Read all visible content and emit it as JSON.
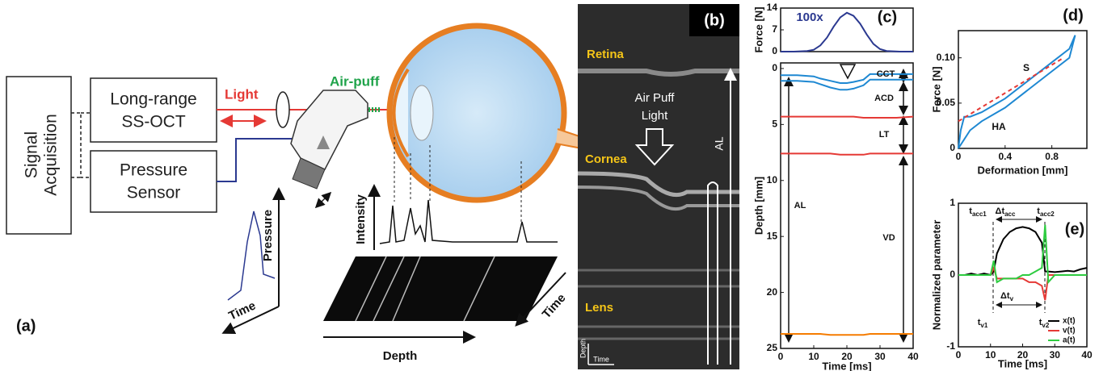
{
  "diagram": {
    "label": "(a)",
    "signal_acquisition": [
      "Signal",
      "Acquisition"
    ],
    "oct": [
      "Long-range",
      "SS-OCT"
    ],
    "sensor": [
      "Pressure",
      "Sensor"
    ],
    "light": "Light",
    "air_puff": "Air-puff",
    "pressure": "Pressure",
    "time_left": "Time",
    "intensity": "Intensity",
    "depth": "Depth",
    "time_right": "Time"
  },
  "image_panel": {
    "label": "(b)",
    "retina": "Retina",
    "cornea": "Cornea",
    "lens": "Lens",
    "air_puff_light": [
      "Air Puff",
      "Light"
    ],
    "al": "AL",
    "depth": "Depth",
    "time": "Time"
  },
  "chart_data": [
    {
      "type": "line",
      "label": "(c)",
      "ylabel": "Force [N]",
      "annotations": [
        "100x"
      ],
      "x": [
        0,
        4,
        8,
        10,
        12,
        14,
        16,
        18,
        20,
        22,
        24,
        26,
        28,
        30,
        32,
        36,
        40
      ],
      "xlim": [
        0,
        40
      ],
      "ylim": [
        0,
        14
      ],
      "yticks": [
        0,
        7,
        14
      ],
      "series": [
        {
          "color": "#2b3990",
          "values": [
            0,
            0,
            0.2,
            0.6,
            2,
            4.5,
            8,
            11,
            12.5,
            11.5,
            9,
            5.5,
            2.5,
            0.8,
            0.2,
            0,
            0
          ]
        }
      ]
    },
    {
      "type": "line",
      "xlabel": "Time [ms]",
      "ylabel": "Depth [mm]",
      "annotations": [
        "CCT",
        "ACD",
        "LT",
        "VD",
        "AL"
      ],
      "x": [
        0,
        5,
        10,
        12,
        15,
        18,
        20,
        22,
        25,
        27,
        30,
        35,
        40
      ],
      "xlim": [
        0,
        40
      ],
      "ylim": [
        25,
        -0.5
      ],
      "xticks": [
        0,
        10,
        20,
        30,
        40
      ],
      "yticks": [
        0,
        5,
        10,
        15,
        20,
        25
      ],
      "series": [
        {
          "color": "#1e88d2",
          "values": [
            0.6,
            0.6,
            0.7,
            0.9,
            1.1,
            1.3,
            1.3,
            1.2,
            1.0,
            0.5,
            0.5,
            0.5,
            0.5
          ]
        },
        {
          "color": "#1e88d2",
          "values": [
            1.1,
            1.1,
            1.2,
            1.4,
            1.7,
            1.9,
            1.9,
            1.8,
            1.5,
            1.0,
            1.0,
            1.0,
            1.0
          ]
        },
        {
          "color": "#e53935",
          "values": [
            4.3,
            4.3,
            4.3,
            4.3,
            4.3,
            4.3,
            4.3,
            4.3,
            4.4,
            4.4,
            4.4,
            4.4,
            4.3
          ]
        },
        {
          "color": "#e53935",
          "values": [
            7.6,
            7.6,
            7.6,
            7.6,
            7.6,
            7.7,
            7.7,
            7.7,
            7.7,
            7.6,
            7.6,
            7.6,
            7.6
          ]
        },
        {
          "color": "#f57c00",
          "values": [
            23.7,
            23.7,
            23.7,
            23.7,
            23.8,
            23.8,
            23.8,
            23.8,
            23.8,
            23.7,
            23.7,
            23.7,
            23.7
          ]
        }
      ]
    },
    {
      "type": "line",
      "label": "(d)",
      "xlabel": "Deformation [mm]",
      "ylabel": "Force [N]",
      "annotations": [
        "HA",
        "S"
      ],
      "xlim": [
        0,
        1.1
      ],
      "ylim": [
        0,
        0.13
      ],
      "xticks": [
        0,
        0.4,
        0.8
      ],
      "yticks": [
        0,
        0.05,
        {
          "value": 0.1,
          "label": "0.10"
        }
      ],
      "series": [
        {
          "color": "#1e88d2",
          "x": [
            0,
            0.02,
            0.05,
            0.1,
            0.2,
            0.4,
            0.6,
            0.8,
            0.95,
            1.0,
            0.95,
            0.8,
            0.6,
            0.4,
            0.2,
            0.1,
            0.05,
            0
          ],
          "values": [
            0,
            0.02,
            0.035,
            0.035,
            0.04,
            0.055,
            0.075,
            0.095,
            0.11,
            0.125,
            0.1,
            0.085,
            0.065,
            0.045,
            0.03,
            0.02,
            0.01,
            0
          ]
        },
        {
          "color": "#e53935",
          "line_style": "dashed",
          "x": [
            0,
            0.9
          ],
          "values": [
            0.03,
            0.1
          ]
        }
      ]
    },
    {
      "type": "line",
      "label": "(e)",
      "xlabel": "Time [ms]",
      "ylabel": "Normalized parameter",
      "annotations": [
        {
          "text": "t",
          "sub": "acc1"
        },
        {
          "text": "t",
          "sub": "acc2"
        },
        {
          "text": "Δt",
          "sub": "acc"
        },
        {
          "text": "Δt",
          "sub": "v"
        },
        {
          "text": "t",
          "sub": "v1"
        },
        {
          "text": "t",
          "sub": "v2"
        }
      ],
      "x": [
        0,
        2,
        4,
        6,
        8,
        10,
        11,
        12,
        14,
        16,
        18,
        20,
        22,
        24,
        26,
        27,
        28,
        30,
        32,
        34,
        36,
        38,
        40
      ],
      "xlim": [
        0,
        40
      ],
      "ylim": [
        -1,
        1
      ],
      "xticks": [
        0,
        10,
        20,
        30,
        40
      ],
      "yticks": [
        -1,
        0,
        1
      ],
      "legend": "lower right",
      "series": [
        {
          "name": "x(t)",
          "color": "#000000",
          "values": [
            0,
            0,
            0.02,
            0,
            0.02,
            0,
            0.05,
            0.3,
            0.5,
            0.6,
            0.65,
            0.67,
            0.65,
            0.6,
            0.45,
            0.05,
            0.05,
            0.04,
            0.05,
            0.06,
            0.05,
            0.08,
            0.1
          ]
        },
        {
          "name": "v(t)",
          "color": "#e53935",
          "values": [
            0,
            0,
            0,
            0,
            0,
            0,
            0.1,
            -0.05,
            -0.05,
            -0.05,
            -0.05,
            -0.05,
            -0.1,
            -0.1,
            -0.15,
            -0.35,
            0,
            0,
            0,
            0,
            0,
            0,
            0
          ]
        },
        {
          "name": "a(t)",
          "color": "#2ecc40",
          "values": [
            0,
            0,
            0,
            0,
            0,
            0,
            0.2,
            -0.1,
            -0.05,
            -0.05,
            -0.05,
            0,
            0,
            0.05,
            0.1,
            0.7,
            -0.1,
            0,
            0,
            0,
            0,
            0,
            0
          ]
        }
      ]
    }
  ]
}
